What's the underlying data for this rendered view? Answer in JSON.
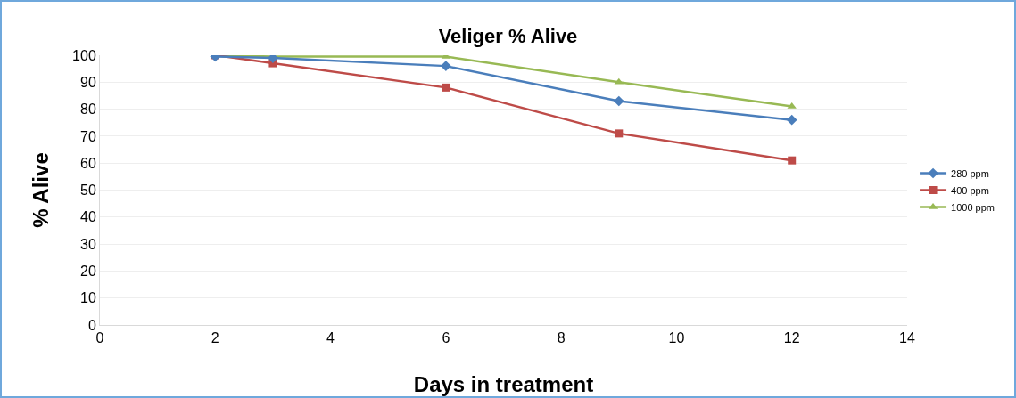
{
  "chart_data": {
    "type": "line",
    "title": "Veliger % Alive",
    "xlabel": "Days in treatment",
    "ylabel": "% Alive",
    "x": [
      2,
      3,
      6,
      9,
      12
    ],
    "series": [
      {
        "name": "280 ppm",
        "color": "#4a7ebb",
        "marker": "diamond",
        "values": [
          99.5,
          99,
          96,
          83,
          76
        ]
      },
      {
        "name": "400 ppm",
        "color": "#be4b48",
        "marker": "square",
        "values": [
          100,
          97,
          88,
          71,
          61
        ]
      },
      {
        "name": "1000 ppm",
        "color": "#98b954",
        "marker": "triangle",
        "values": [
          100,
          99.5,
          99.5,
          90,
          81
        ]
      }
    ],
    "xlim": [
      0,
      14
    ],
    "xticks": [
      0,
      2,
      4,
      6,
      8,
      10,
      12,
      14
    ],
    "ylim": [
      0,
      100
    ],
    "yticks": [
      0,
      10,
      20,
      30,
      40,
      50,
      60,
      70,
      80,
      90,
      100
    ],
    "grid": "y",
    "legend": "right",
    "line_style": "solid"
  }
}
